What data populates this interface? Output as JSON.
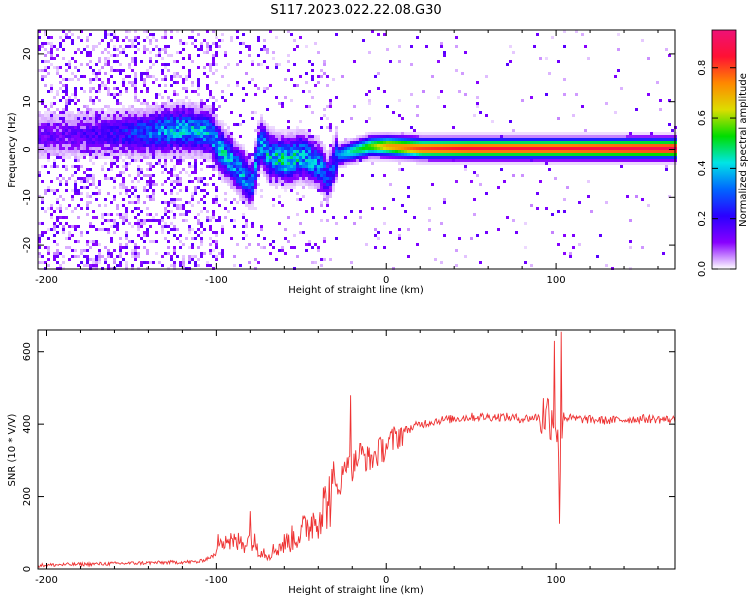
{
  "title": "S117.2023.022.22.08.G30",
  "colors": {
    "snr_line": "#ee3333",
    "colormap": [
      "#ffffff",
      "#8800ff",
      "#2a00ff",
      "#0066ff",
      "#00e5e5",
      "#00dd00",
      "#dddd00",
      "#ff8800",
      "#ff1133",
      "#ee1177"
    ]
  },
  "chart_data": [
    {
      "type": "heatmap",
      "xlabel": "Height of straight line (km)",
      "ylabel": "Frequency (Hz)",
      "xlim": [
        -205,
        170
      ],
      "ylim": [
        -25,
        25
      ],
      "x_ticks": [
        -200,
        -100,
        0,
        100
      ],
      "y_ticks": [
        -20,
        -10,
        0,
        10,
        20
      ],
      "ridge": {
        "x": [
          -205,
          -180,
          -160,
          -140,
          -120,
          -105,
          -100,
          -95,
          -85,
          -80,
          -75,
          -70,
          -60,
          -50,
          -40,
          -35,
          -30,
          -20,
          -10,
          0,
          20,
          50,
          100,
          170
        ],
        "freq": [
          3,
          3.5,
          3.5,
          4,
          4.5,
          4,
          1,
          -1,
          -5,
          -7,
          2,
          -1,
          -2,
          -1,
          -3,
          -6,
          -1,
          0,
          1,
          1,
          0.5,
          0.5,
          0.5,
          0.5
        ],
        "amplitude": [
          0.15,
          0.18,
          0.22,
          0.35,
          0.45,
          0.4,
          0.45,
          0.45,
          0.4,
          0.35,
          0.45,
          0.45,
          0.5,
          0.45,
          0.4,
          0.3,
          0.35,
          0.5,
          0.6,
          0.75,
          0.85,
          0.9,
          0.9,
          0.95
        ]
      },
      "colorbar": {
        "label": "Normalized spectral amplitude",
        "range": [
          0,
          0.95
        ],
        "ticks": [
          "0.0",
          "0.2",
          "0.4",
          "0.6",
          "0.8"
        ]
      }
    },
    {
      "type": "line",
      "xlabel": "Height of straight line (km)",
      "ylabel": "SNR (10 * V/V)",
      "xlim": [
        -205,
        170
      ],
      "ylim": [
        0,
        660
      ],
      "x_ticks": [
        -200,
        -100,
        0,
        100
      ],
      "y_ticks": [
        0,
        200,
        400,
        600
      ],
      "series": [
        {
          "x": [
            -205,
            -190,
            -170,
            -150,
            -130,
            -110,
            -100,
            -98,
            -90,
            -80,
            -75,
            -70,
            -60,
            -50,
            -40,
            -30,
            -25,
            -22,
            -20,
            -15,
            -10,
            0,
            10,
            20,
            30,
            50,
            70,
            80,
            90,
            95,
            100,
            102,
            104,
            110,
            130,
            150,
            170
          ],
          "y": [
            10,
            12,
            14,
            16,
            18,
            20,
            40,
            100,
            70,
            80,
            60,
            40,
            70,
            100,
            150,
            220,
            260,
            330,
            280,
            320,
            300,
            340,
            380,
            400,
            410,
            420,
            420,
            415,
            420,
            430,
            410,
            300,
            420,
            415,
            410,
            415,
            412
          ]
        }
      ],
      "spikes": [
        {
          "x": -80,
          "y": 160
        },
        {
          "x": -21,
          "y": 480
        },
        {
          "x": 99,
          "y": 630
        },
        {
          "x": 103,
          "y": 655
        },
        {
          "x": 102,
          "y": 125
        }
      ]
    }
  ]
}
